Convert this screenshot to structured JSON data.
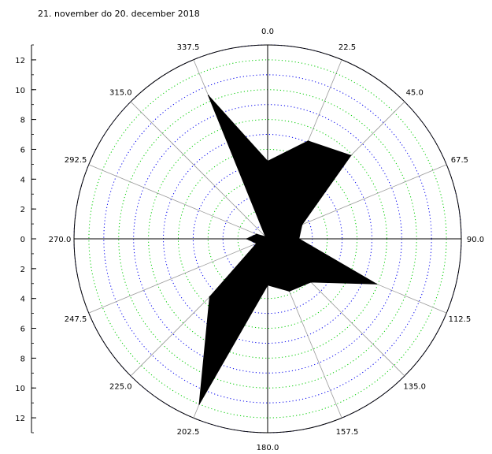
{
  "chart_data": {
    "type": "polar-area",
    "title": "21. november do 20. december 2018",
    "angle_labels": [
      "0.0",
      "22.5",
      "45.0",
      "67.5",
      "90.0",
      "112.5",
      "135.0",
      "157.5",
      "180.0",
      "202.5",
      "225.0",
      "247.5",
      "270.0",
      "292.5",
      "315.0",
      "337.5"
    ],
    "radial_axis": {
      "max": 13,
      "tick_labels_upper": [
        "12",
        "10",
        "8",
        "6",
        "4",
        "2",
        "0"
      ],
      "tick_labels_lower": [
        "2",
        "4",
        "6",
        "8",
        "10",
        "12"
      ],
      "tick_values_upper": [
        12,
        10,
        8,
        6,
        4,
        2,
        0
      ],
      "tick_values_lower": [
        2,
        4,
        6,
        8,
        10,
        12
      ]
    },
    "grid": true,
    "ring_colors": [
      "#00cc00",
      "#0000ee"
    ],
    "fill_color": "#000000",
    "series": [
      {
        "values_by_direction": [
          {
            "angle": 0.0,
            "value": 5.2
          },
          {
            "angle": 22.5,
            "value": 7.1
          },
          {
            "angle": 45.0,
            "value": 7.9
          },
          {
            "angle": 67.5,
            "value": 2.5
          },
          {
            "angle": 90.0,
            "value": 2.1
          },
          {
            "angle": 112.5,
            "value": 7.9
          },
          {
            "angle": 135.0,
            "value": 4.1
          },
          {
            "angle": 157.5,
            "value": 3.8
          },
          {
            "angle": 180.0,
            "value": 3.1
          },
          {
            "angle": 202.5,
            "value": 12.0
          },
          {
            "angle": 225.0,
            "value": 5.5
          },
          {
            "angle": 247.5,
            "value": 0.8
          },
          {
            "angle": 270.0,
            "value": 1.4
          },
          {
            "angle": 292.5,
            "value": 0.8
          },
          {
            "angle": 315.0,
            "value": 0.2
          },
          {
            "angle": 337.5,
            "value": 10.4
          }
        ]
      }
    ]
  }
}
